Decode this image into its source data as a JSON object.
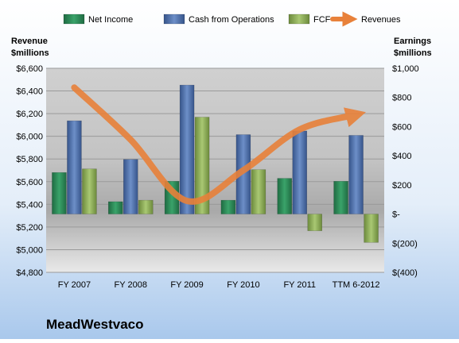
{
  "chart_data": {
    "type": "bar",
    "company": "MeadWestvaco",
    "categories": [
      "FY 2007",
      "FY 2008",
      "FY 2009",
      "FY 2010",
      "FY 2011",
      "TTM 6-2012"
    ],
    "left_axis": {
      "label_line1": "Revenue",
      "label_line2": "$millions",
      "ticks": [
        "$4,800",
        "$5,000",
        "$5,200",
        "$5,400",
        "$5,600",
        "$5,800",
        "$6,000",
        "$6,200",
        "$6,400",
        "$6,600"
      ],
      "ylim": [
        4800,
        6600
      ]
    },
    "right_axis": {
      "label_line1": "Earnings",
      "label_line2": "$millions",
      "ticks": [
        "$(400)",
        "$(200)",
        "$-",
        "$200",
        "$400",
        "$600",
        "$800",
        "$1,000"
      ],
      "ylim": [
        -400,
        1000
      ]
    },
    "legend_position": "top",
    "series": [
      {
        "name": "Net Income",
        "type": "bar",
        "axis": "right",
        "color": "#2e8b57",
        "values": [
          285,
          85,
          225,
          95,
          245,
          225
        ]
      },
      {
        "name": "Cash from Operations",
        "type": "bar",
        "axis": "right",
        "color": "#4f6fa8",
        "values": [
          640,
          375,
          885,
          545,
          570,
          540
        ]
      },
      {
        "name": "FCF",
        "type": "bar",
        "axis": "right",
        "color": "#8fb05a",
        "values": [
          310,
          95,
          665,
          305,
          -115,
          -195
        ]
      },
      {
        "name": "Revenues",
        "type": "line",
        "axis": "left",
        "color": "#e8813a",
        "values": [
          6430,
          5970,
          5430,
          5700,
          6060,
          6190
        ]
      }
    ]
  }
}
